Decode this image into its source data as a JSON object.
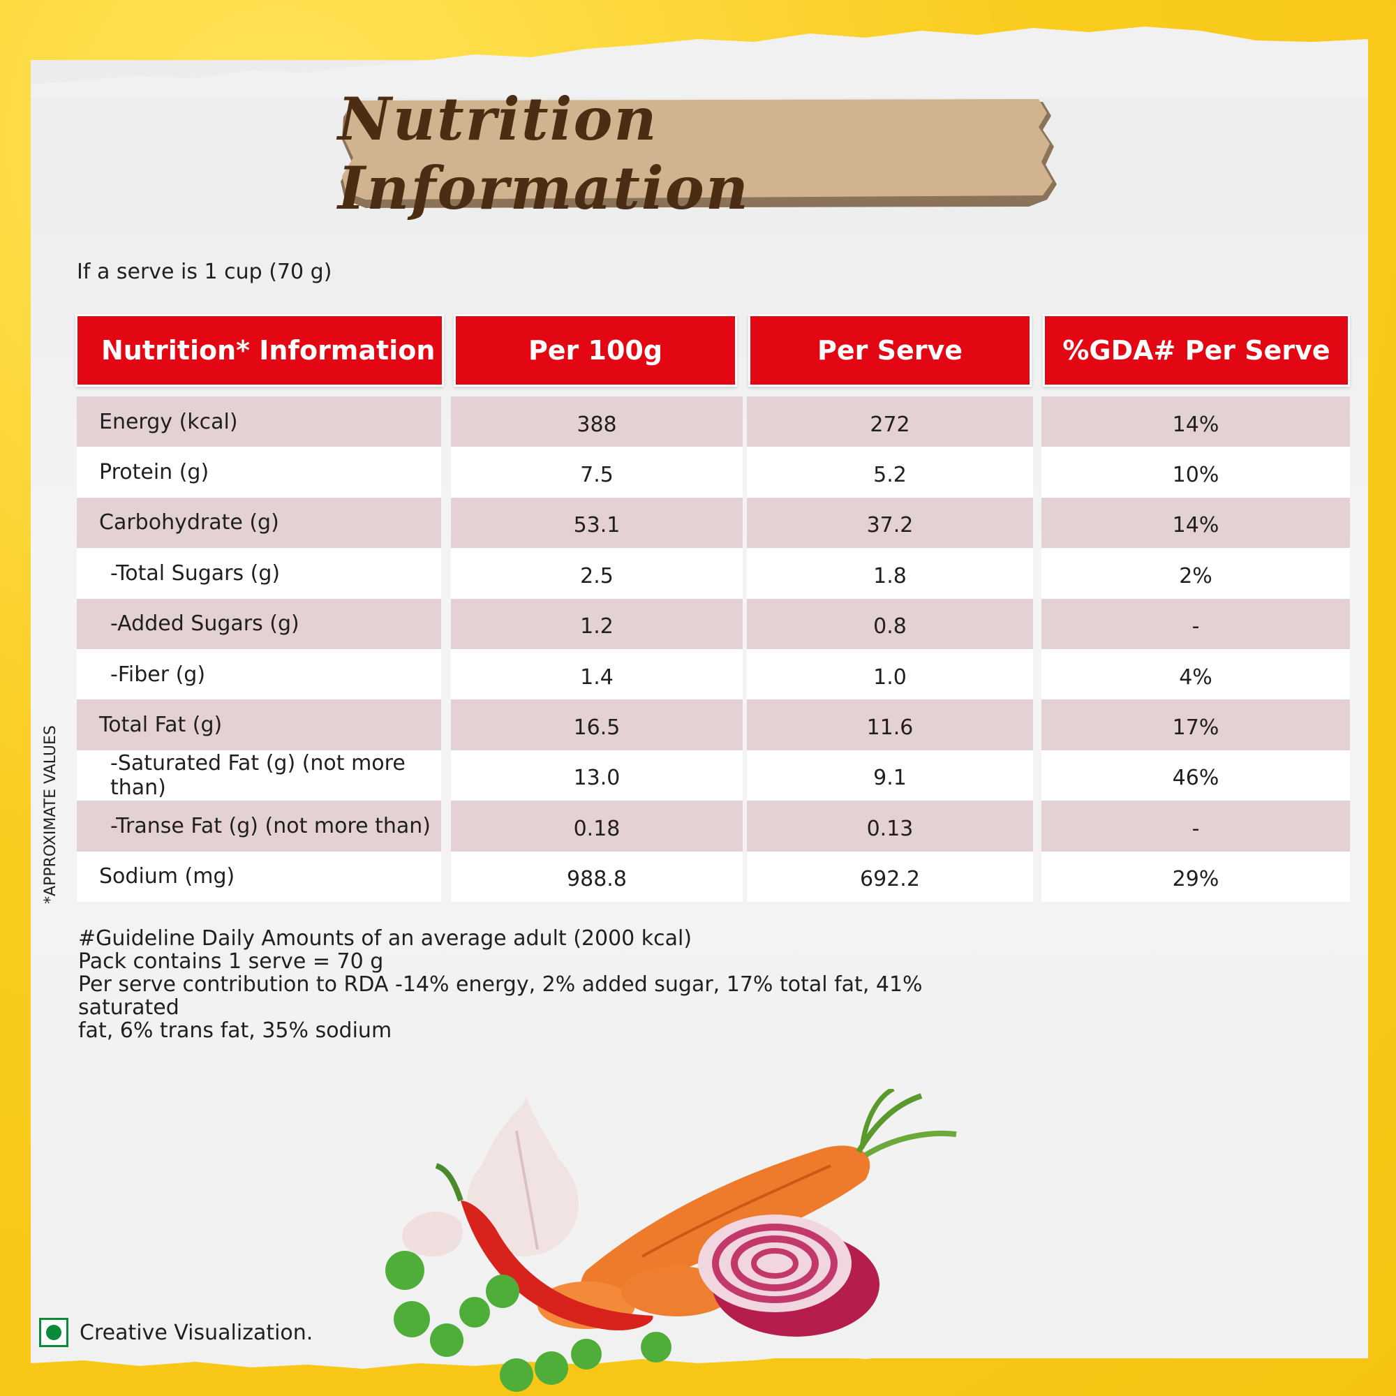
{
  "title": "Nutrition Information",
  "serve_note": "If a serve is 1 cup (70 g)",
  "headers": [
    "Nutrition* Information",
    "Per 100g",
    "Per Serve",
    "%GDA# Per Serve"
  ],
  "rows": [
    {
      "name": "Energy (kcal)",
      "per100": "388",
      "perServe": "272",
      "gda": "14%"
    },
    {
      "name": "Protein (g)",
      "per100": "7.5",
      "perServe": "5.2",
      "gda": "10%"
    },
    {
      "name": "Carbohydrate (g)",
      "per100": "53.1",
      "perServe": "37.2",
      "gda": "14%"
    },
    {
      "name": "-Total Sugars (g)",
      "per100": "2.5",
      "perServe": "1.8",
      "gda": "2%"
    },
    {
      "name": "-Added Sugars (g)",
      "per100": "1.2",
      "perServe": "0.8",
      "gda": "-"
    },
    {
      "name": "-Fiber (g)",
      "per100": "1.4",
      "perServe": "1.0",
      "gda": "4%"
    },
    {
      "name": "Total Fat (g)",
      "per100": "16.5",
      "perServe": "11.6",
      "gda": "17%"
    },
    {
      "name": "-Saturated Fat (g) (not more than)",
      "per100": "13.0",
      "perServe": "9.1",
      "gda": "46%"
    },
    {
      "name": "-Transe Fat (g) (not more than)",
      "per100": "0.18",
      "perServe": "0.13",
      "gda": "-"
    },
    {
      "name": "Sodium (mg)",
      "per100": "988.8",
      "perServe": "692.2",
      "gda": "29%"
    }
  ],
  "side_note": "*APPROXIMATE VALUES",
  "footnotes": [
    "#Guideline Daily Amounts of an average adult (2000 kcal)",
    "Pack contains 1 serve = 70 g",
    "Per serve contribution to RDA -14% energy, 2% added sugar, 17% total fat, 41% saturated",
    "fat, 6% trans fat, 35% sodium"
  ],
  "creative_note": "Creative Visualization.",
  "colors": {
    "header_red": "#e30613",
    "row_shade": "#e3d1d3",
    "title_brown": "#4a2d12",
    "veg_green": "#0b8a3a",
    "background_yellow": "#f9cc1e"
  }
}
